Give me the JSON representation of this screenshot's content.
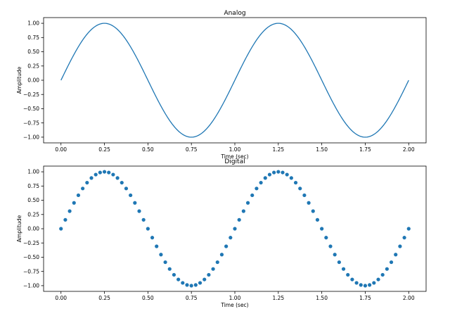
{
  "chart_data": [
    {
      "type": "line",
      "title": "Analog",
      "xlabel": "Time (sec)",
      "ylabel": "Amplitude",
      "function": "sin(2*pi*t)",
      "x_range": [
        0.0,
        2.0
      ],
      "xlim": [
        -0.1,
        2.1
      ],
      "ylim": [
        -1.1,
        1.1
      ],
      "x_ticks": [
        "0.00",
        "0.25",
        "0.50",
        "0.75",
        "1.00",
        "1.25",
        "1.50",
        "1.75",
        "2.00"
      ],
      "y_ticks": [
        "1.00",
        "0.75",
        "0.50",
        "0.25",
        "0.00",
        "−0.25",
        "−0.50",
        "−0.75",
        "−1.00"
      ],
      "grid": false,
      "color": "#1f77b4"
    },
    {
      "type": "scatter",
      "title": "Digital",
      "xlabel": "Time (sec)",
      "ylabel": "Amplitude",
      "function": "sin(2*pi*t)",
      "x_range": [
        0.0,
        2.0
      ],
      "sample_count": 81,
      "xlim": [
        -0.1,
        2.1
      ],
      "ylim": [
        -1.1,
        1.1
      ],
      "x_ticks": [
        "0.00",
        "0.25",
        "0.50",
        "0.75",
        "1.00",
        "1.25",
        "1.50",
        "1.75",
        "2.00"
      ],
      "y_ticks": [
        "1.00",
        "0.75",
        "0.50",
        "0.25",
        "0.00",
        "−0.25",
        "−0.50",
        "−0.75",
        "−1.00"
      ],
      "grid": false,
      "color": "#1f77b4"
    }
  ]
}
